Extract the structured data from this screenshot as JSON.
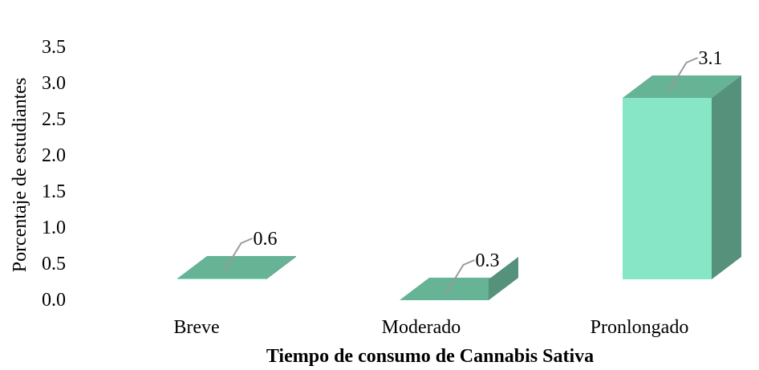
{
  "chart_data": {
    "type": "bar",
    "categories": [
      "Breve",
      "Moderado",
      "Pronlongado"
    ],
    "values": [
      0.6,
      0.3,
      3.1
    ],
    "data_labels": [
      "0.6",
      "0.3",
      "3.1"
    ],
    "xlabel": "Tiempo de consumo de Cannabis Sativa",
    "ylabel": "Porcentaje de estudiantes",
    "ylim": [
      0,
      3.5
    ],
    "yticks": [
      "0.0",
      "0.5",
      "1.0",
      "1.5",
      "2.0",
      "2.5",
      "3.0",
      "3.5"
    ],
    "grid": false,
    "legend": "none",
    "style": "3d-column",
    "colors": {
      "front": "#86e6c6",
      "top": "#66b396",
      "side": "#55917b"
    }
  }
}
